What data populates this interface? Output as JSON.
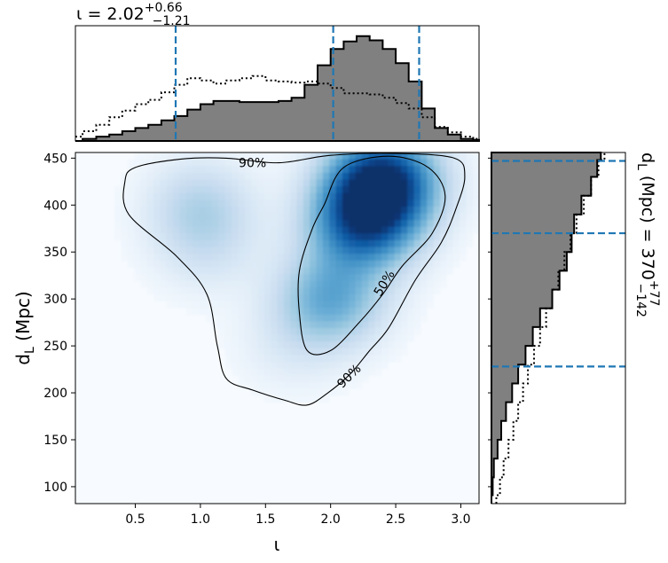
{
  "chart_data": [
    {
      "panel": "joint",
      "type": "heatmap",
      "colormap": "Blues",
      "xlabel": "ι",
      "ylabel_sym": "d",
      "ylabel_sub": "L",
      "ylabel_unit": " (Mpc)",
      "xlim": [
        0.04,
        3.14
      ],
      "ylim": [
        82,
        456
      ],
      "xticks": [
        "0.5",
        "1.0",
        "1.5",
        "2.0",
        "2.5",
        "3.0"
      ],
      "yticks": [
        "100",
        "150",
        "200",
        "250",
        "300",
        "350",
        "400",
        "450"
      ],
      "xtick_values": [
        0.5,
        1.0,
        1.5,
        2.0,
        2.5,
        3.0
      ],
      "ytick_values": [
        100,
        150,
        200,
        250,
        300,
        350,
        400,
        450
      ],
      "density_peaks": [
        {
          "x": 2.4,
          "y": 425,
          "weight": 1.0
        },
        {
          "x": 2.25,
          "y": 380,
          "weight": 0.75
        },
        {
          "x": 2.0,
          "y": 300,
          "weight": 0.45
        },
        {
          "x": 1.0,
          "y": 400,
          "weight": 0.22
        },
        {
          "x": 1.05,
          "y": 355,
          "weight": 0.12
        },
        {
          "x": 1.7,
          "y": 250,
          "weight": 0.08
        }
      ],
      "contours": [
        {
          "label": "90%",
          "points": [
            [
              0.5,
              440
            ],
            [
              0.85,
              449
            ],
            [
              1.2,
              450
            ],
            [
              1.6,
              445
            ],
            [
              2.0,
              453
            ],
            [
              2.5,
              455
            ],
            [
              2.95,
              450
            ],
            [
              3.03,
              430
            ],
            [
              2.96,
              395
            ],
            [
              2.85,
              360
            ],
            [
              2.65,
              320
            ],
            [
              2.45,
              270
            ],
            [
              2.3,
              245
            ],
            [
              2.15,
              220
            ],
            [
              1.98,
              200
            ],
            [
              1.82,
              187
            ],
            [
              1.65,
              192
            ],
            [
              1.4,
              203
            ],
            [
              1.2,
              215
            ],
            [
              1.13,
              250
            ],
            [
              1.05,
              305
            ],
            [
              0.82,
              345
            ],
            [
              0.45,
              390
            ],
            [
              0.42,
              425
            ]
          ]
        },
        {
          "label": "50%",
          "points": [
            [
              1.95,
              400
            ],
            [
              2.1,
              440
            ],
            [
              2.45,
              452
            ],
            [
              2.75,
              440
            ],
            [
              2.88,
              410
            ],
            [
              2.78,
              370
            ],
            [
              2.55,
              335
            ],
            [
              2.4,
              305
            ],
            [
              2.22,
              275
            ],
            [
              2.0,
              245
            ],
            [
              1.82,
              245
            ],
            [
              1.76,
              285
            ],
            [
              1.76,
              330
            ],
            [
              1.86,
              375
            ]
          ]
        }
      ]
    },
    {
      "panel": "top-marginal",
      "type": "area",
      "title_sym": "ι",
      "title_value": " = 2.02",
      "title_sup": "+0.66",
      "title_sub": "−1.21",
      "quantile_lines": [
        0.81,
        2.02,
        2.68
      ],
      "x": [
        0.04,
        0.15,
        0.25,
        0.35,
        0.45,
        0.55,
        0.65,
        0.75,
        0.85,
        0.95,
        1.05,
        1.15,
        1.25,
        1.35,
        1.45,
        1.55,
        1.65,
        1.75,
        1.85,
        1.95,
        2.05,
        2.15,
        2.25,
        2.35,
        2.45,
        2.55,
        2.65,
        2.75,
        2.85,
        2.95,
        3.05,
        3.14
      ],
      "posterior": [
        0.0,
        0.02,
        0.04,
        0.06,
        0.09,
        0.12,
        0.15,
        0.19,
        0.23,
        0.29,
        0.34,
        0.37,
        0.37,
        0.36,
        0.36,
        0.36,
        0.37,
        0.4,
        0.52,
        0.7,
        0.85,
        0.92,
        0.97,
        0.93,
        0.85,
        0.72,
        0.55,
        0.3,
        0.12,
        0.06,
        0.02,
        0.01
      ],
      "prior": [
        0.04,
        0.09,
        0.15,
        0.22,
        0.28,
        0.34,
        0.38,
        0.45,
        0.52,
        0.58,
        0.56,
        0.53,
        0.56,
        0.58,
        0.6,
        0.56,
        0.55,
        0.54,
        0.55,
        0.53,
        0.49,
        0.44,
        0.44,
        0.43,
        0.4,
        0.35,
        0.3,
        0.22,
        0.13,
        0.08,
        0.04,
        0.02
      ]
    },
    {
      "panel": "right-marginal",
      "type": "area",
      "side_sym": "d",
      "side_sub": "L",
      "side_value": " (Mpc) = 370",
      "side_sup": "+77",
      "side_sub2": "−142",
      "quantile_lines": [
        228,
        370,
        447
      ],
      "y": [
        82,
        100,
        120,
        140,
        160,
        180,
        200,
        220,
        240,
        260,
        280,
        300,
        320,
        340,
        360,
        380,
        400,
        420,
        440,
        456
      ],
      "posterior": [
        0.0,
        0.01,
        0.02,
        0.05,
        0.08,
        0.12,
        0.17,
        0.22,
        0.28,
        0.34,
        0.4,
        0.5,
        0.56,
        0.62,
        0.66,
        0.68,
        0.74,
        0.82,
        0.87,
        0.9
      ],
      "prior": [
        0.04,
        0.07,
        0.1,
        0.14,
        0.18,
        0.22,
        0.26,
        0.3,
        0.35,
        0.4,
        0.45,
        0.5,
        0.55,
        0.6,
        0.65,
        0.7,
        0.76,
        0.82,
        0.88,
        0.93
      ]
    }
  ]
}
